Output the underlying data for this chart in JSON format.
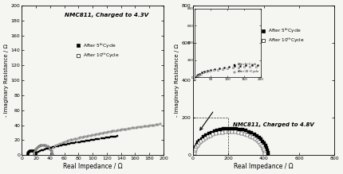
{
  "left_title": "NMC811, Charged to 4.3V",
  "right_title": "NMC811, Charged to 4.8V",
  "xlabel": "Real Impedance / Ω",
  "ylabel": "- Imaginary Resistance / Ω",
  "left_xlim": [
    0,
    200
  ],
  "left_ylim": [
    0,
    200
  ],
  "right_xlim": [
    0,
    800
  ],
  "right_ylim": [
    0,
    800
  ],
  "legend_label_5": "After 5",
  "legend_label_10": "After 10",
  "legend_sup_5": "th",
  "legend_sup_10": "th",
  "bg_color": "#f5f5f2",
  "text_color": "#000000"
}
